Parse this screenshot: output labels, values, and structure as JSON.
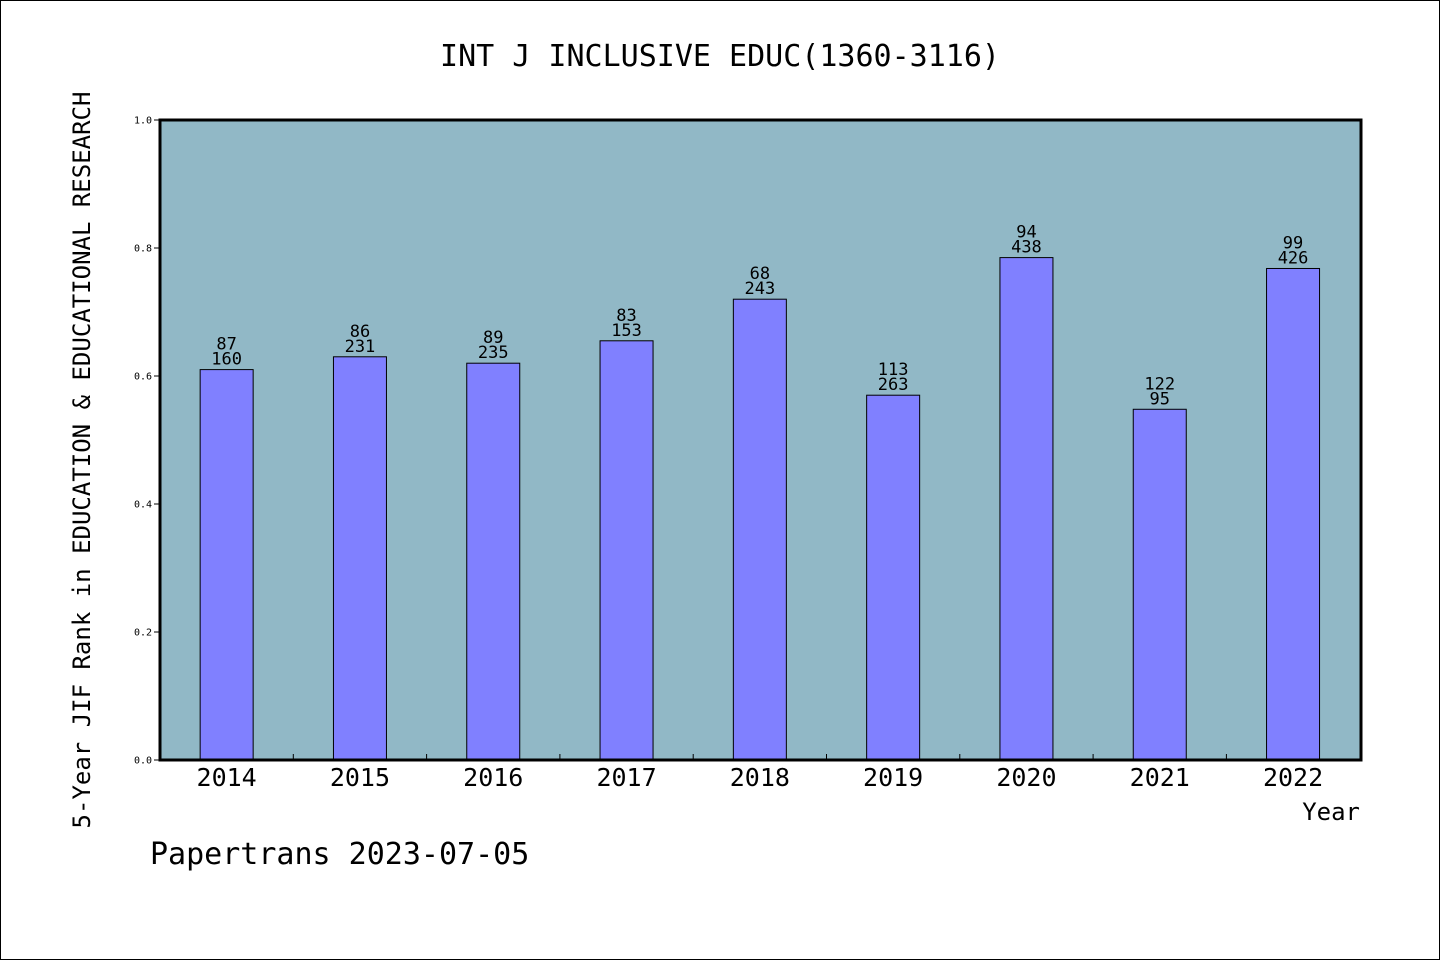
{
  "chart_data": {
    "type": "bar",
    "title": "INT J INCLUSIVE EDUC(1360-3116)",
    "xlabel": "Year",
    "ylabel": "5-Year JIF Rank in EDUCATION & EDUCATIONAL RESEARCH",
    "ylim": [
      0,
      1.0
    ],
    "yticks": [
      "0.0",
      "0.2",
      "0.4",
      "0.6",
      "0.8",
      "1.0"
    ],
    "grid": false,
    "categories": [
      "2014",
      "2015",
      "2016",
      "2017",
      "2018",
      "2019",
      "2020",
      "2021",
      "2022"
    ],
    "values": [
      0.61,
      0.63,
      0.62,
      0.655,
      0.72,
      0.57,
      0.785,
      0.548,
      0.768
    ],
    "rank_labels": [
      "87",
      "86",
      "89",
      "83",
      "68",
      "113",
      "94",
      "122",
      "99"
    ],
    "total_labels": [
      "160",
      "231",
      "235",
      "153",
      "243",
      "263",
      "438",
      "95",
      "426"
    ],
    "colors": {
      "plot_background": "#91b8c6",
      "bar_fill": "#8080ff",
      "bar_stroke": "#000000"
    }
  },
  "footer": {
    "credit": "Papertrans 2023-07-05"
  }
}
